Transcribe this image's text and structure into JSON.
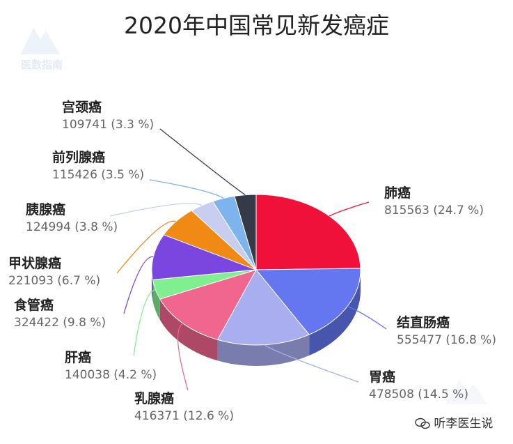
{
  "chart_data": {
    "type": "pie",
    "title": "2020年中国常见新发癌症",
    "categories": [
      "肺癌",
      "结直肠癌",
      "胃癌",
      "乳腺癌",
      "肝癌",
      "食管癌",
      "甲状腺癌",
      "胰腺癌",
      "前列腺癌",
      "宫颈癌"
    ],
    "values": [
      815563,
      555477,
      478508,
      416371,
      140038,
      324422,
      221093,
      124994,
      115426,
      109741
    ],
    "percent_labels": [
      "(24.7 %)",
      "(16.8 %)",
      "(14.5 %)",
      "(12.6 %)",
      "(4.2 %)",
      "(9.8 %)",
      "(6.7 %)",
      "(3.8 %)",
      "(3.5 %)",
      "(3.3 %)"
    ],
    "colors": [
      "#f0113b",
      "#6476f0",
      "#a8aef0",
      "#f0668e",
      "#80ef90",
      "#7b46e0",
      "#f08a14",
      "#c8cef0",
      "#7db4ee",
      "#343a48"
    ],
    "style": "3d",
    "legend": "none"
  },
  "watermark": "医数指南",
  "account": "听李医生说"
}
